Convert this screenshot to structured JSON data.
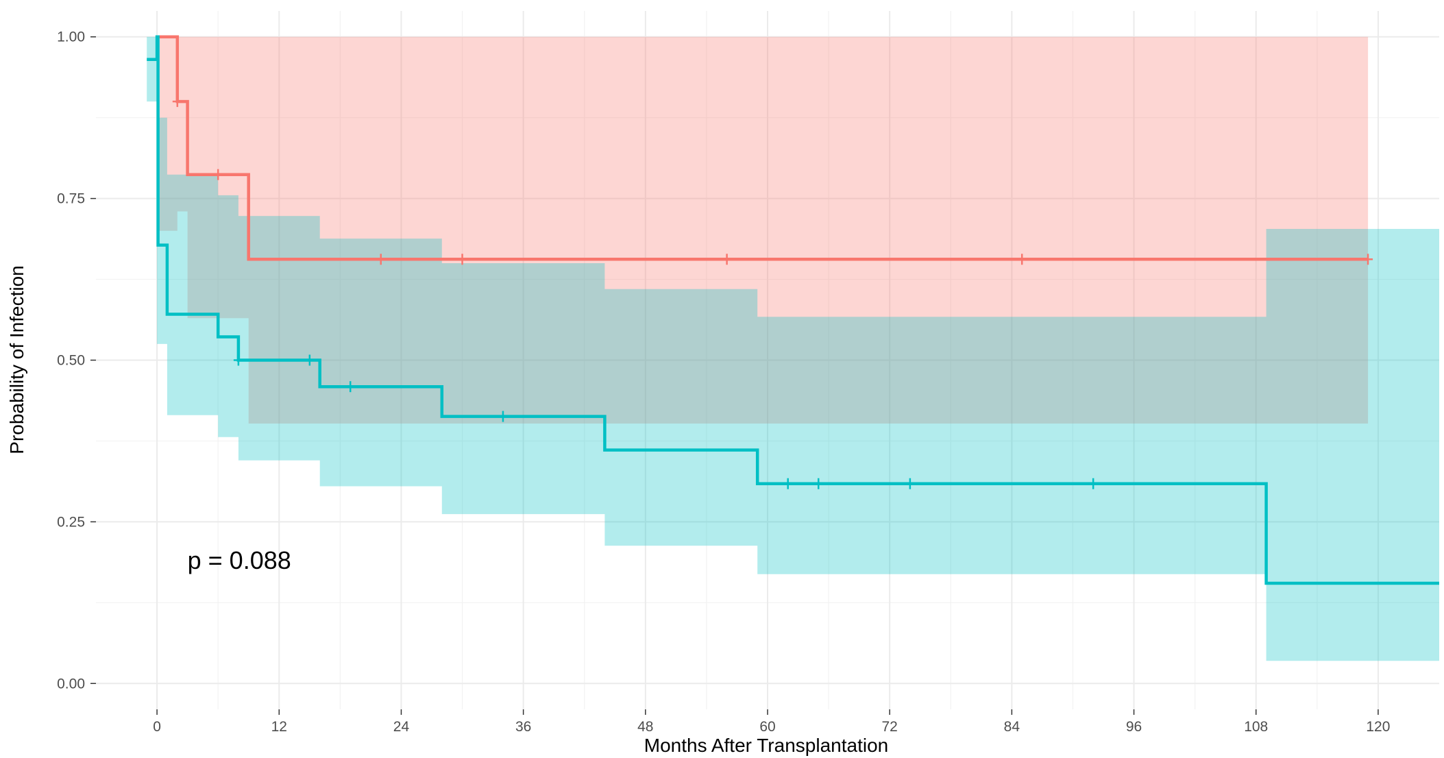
{
  "chart_data": {
    "type": "line",
    "title": "",
    "xlabel": "Months After Transplantation",
    "ylabel": "Probability of Infection",
    "xlim": [
      -6,
      126
    ],
    "ylim": [
      -0.04,
      1.04
    ],
    "xticks": [
      0,
      12,
      24,
      36,
      48,
      60,
      72,
      84,
      96,
      108,
      120
    ],
    "xtick_labels": [
      "0",
      "12",
      "24",
      "36",
      "48",
      "60",
      "72",
      "84",
      "96",
      "108",
      "120"
    ],
    "yticks": [
      0,
      0.25,
      0.5,
      0.75,
      1
    ],
    "ytick_labels": [
      "0.00",
      "0.25",
      "0.50",
      "0.75",
      "1.00"
    ],
    "grid": true,
    "legend": "none",
    "annotation": "p = 0.088",
    "annotation_at": {
      "x": 3,
      "y": 0.19
    },
    "series": [
      {
        "color": "#F8766D",
        "fill": "#F8766D",
        "steps": [
          [
            0,
            1.0
          ],
          [
            2,
            0.9
          ],
          [
            3,
            0.787
          ],
          [
            9,
            0.656
          ],
          [
            119,
            0.656
          ]
        ],
        "ci": [
          [
            0,
            0.7,
            1.0
          ],
          [
            2,
            0.73,
            1.0
          ],
          [
            3,
            0.565,
            1.0
          ],
          [
            9,
            0.402,
            1.0
          ],
          [
            119,
            0.402,
            1.0
          ]
        ],
        "censors": [
          [
            2,
            0.9
          ],
          [
            6,
            0.787
          ],
          [
            22,
            0.656
          ],
          [
            30,
            0.656
          ],
          [
            56,
            0.656
          ],
          [
            85,
            0.656
          ],
          [
            119,
            0.656
          ]
        ]
      },
      {
        "color": "#00BFC4",
        "fill": "#00BFC4",
        "steps": [
          [
            -1,
            0.965
          ],
          [
            0,
            1.0
          ],
          [
            0.1,
            0.678
          ],
          [
            1,
            0.571
          ],
          [
            6,
            0.536
          ],
          [
            8,
            0.5
          ],
          [
            16,
            0.459
          ],
          [
            28,
            0.413
          ],
          [
            44,
            0.361
          ],
          [
            59,
            0.309
          ],
          [
            109,
            0.155
          ],
          [
            126,
            0.155
          ]
        ],
        "ci": [
          [
            -1,
            0.9,
            1.0
          ],
          [
            0,
            0.525,
            0.875
          ],
          [
            1,
            0.415,
            0.787
          ],
          [
            6,
            0.381,
            0.755
          ],
          [
            8,
            0.345,
            0.723
          ],
          [
            16,
            0.305,
            0.688
          ],
          [
            28,
            0.262,
            0.65
          ],
          [
            44,
            0.213,
            0.61
          ],
          [
            59,
            0.169,
            0.567
          ],
          [
            109,
            0.035,
            0.703
          ],
          [
            126,
            0.035,
            0.703
          ]
        ],
        "censors": [
          [
            8,
            0.5
          ],
          [
            15,
            0.5
          ],
          [
            19,
            0.459
          ],
          [
            34,
            0.413
          ],
          [
            62,
            0.309
          ],
          [
            65,
            0.309
          ],
          [
            74,
            0.309
          ],
          [
            92,
            0.309
          ]
        ]
      }
    ]
  }
}
